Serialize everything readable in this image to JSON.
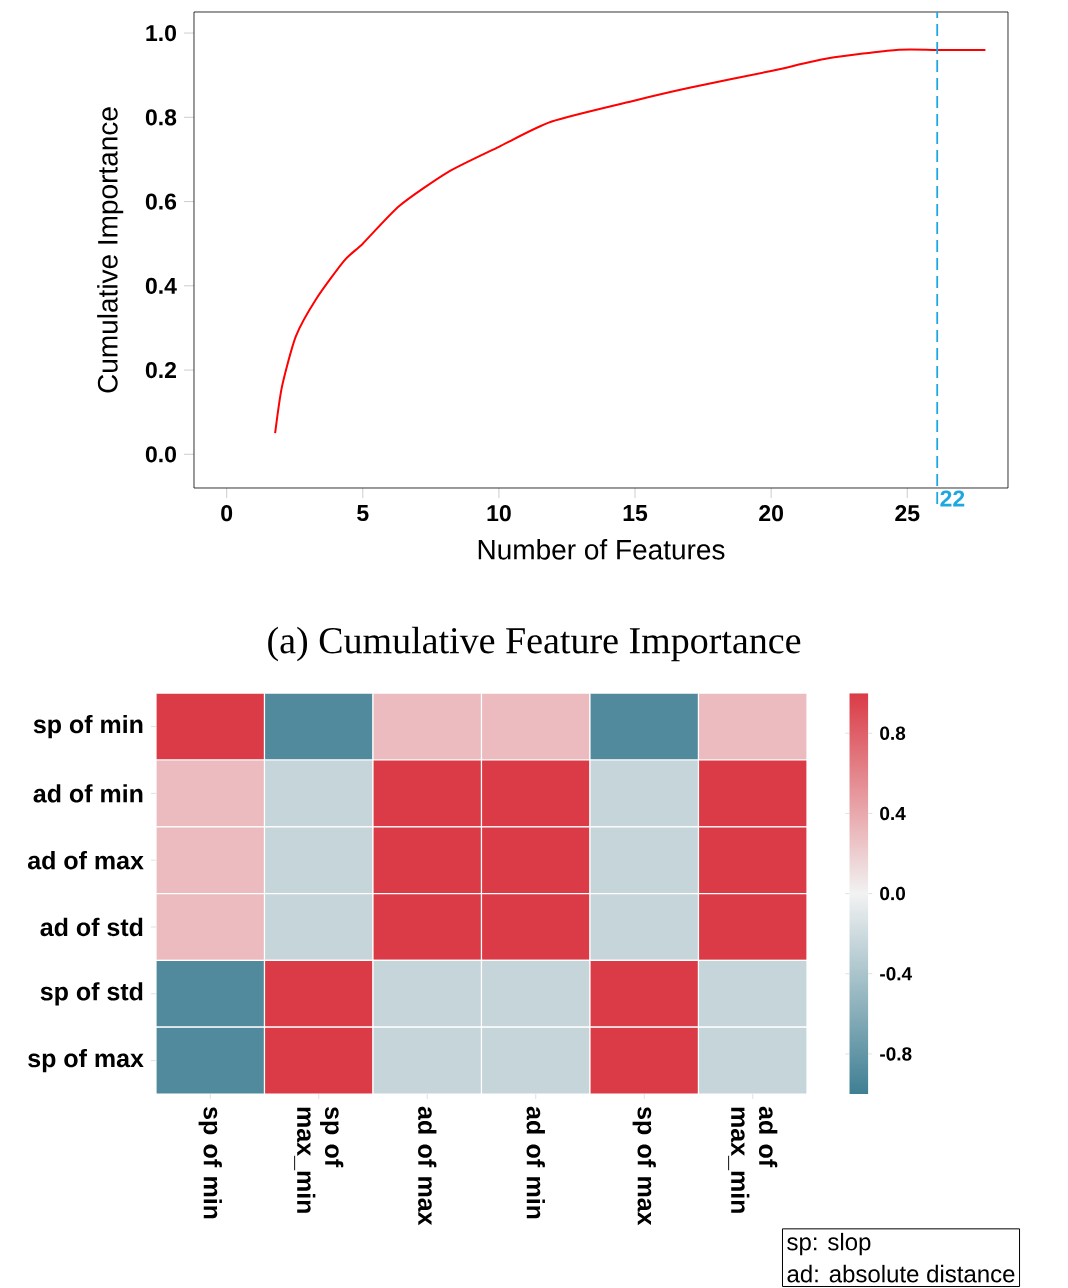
{
  "chart_data": [
    {
      "type": "line",
      "xlabel": "Number of Features",
      "ylabel": "Cumulative Importance",
      "x": [
        1.78,
        2.03,
        2.54,
        3.3,
        4.32,
        5.0,
        6.35,
        8.13,
        10.0,
        11.94,
        15.0,
        17.0,
        20.0,
        22.1,
        24.6,
        26.1,
        27.87
      ],
      "values": [
        0.05,
        0.16,
        0.28,
        0.37,
        0.46,
        0.5,
        0.59,
        0.67,
        0.73,
        0.79,
        0.84,
        0.87,
        0.91,
        0.94,
        0.96,
        0.96,
        0.96
      ],
      "color": "#ff0000",
      "xlim": [
        -1.2,
        28.7
      ],
      "ylim": [
        -0.08,
        1.05
      ],
      "xticks": [
        0,
        5,
        10,
        15,
        20,
        25
      ],
      "yticks": [
        {
          "value": 0,
          "label": "0.0"
        },
        {
          "value": 0.2,
          "label": "0.2"
        },
        {
          "value": 0.4,
          "label": "0.4"
        },
        {
          "value": 0.6,
          "label": "0.6"
        },
        {
          "value": 0.8,
          "label": "0.8"
        },
        {
          "value": 1,
          "label": "1.0"
        }
      ],
      "ref_lines": [
        {
          "axis": "x",
          "value": 26.1,
          "color": "#1ea7e1",
          "line_style": "dashed"
        }
      ],
      "annotations": [
        "(a) Cumulative Feature Importance",
        {
          "text": "22",
          "x": 26.1,
          "y": -0.08
        }
      ]
    },
    {
      "type": "heatmap",
      "categories": [
        "sp of min",
        "sp of max_min",
        "ad of max",
        "ad of min",
        "sp of max",
        "ad of max_min"
      ],
      "y_categories": [
        "sp of min",
        "ad of min",
        "ad of max",
        "ad of std",
        "sp of std",
        "sp of max"
      ],
      "cells": [
        [
          1,
          -0.9,
          0.3,
          0.3,
          -0.9,
          0.3
        ],
        [
          0.3,
          -0.25,
          1,
          1,
          -0.25,
          1
        ],
        [
          0.3,
          -0.25,
          1,
          1,
          -0.25,
          1
        ],
        [
          0.3,
          -0.25,
          1,
          1,
          -0.25,
          1
        ],
        [
          -0.9,
          1,
          -0.25,
          -0.25,
          1,
          -0.25
        ],
        [
          -0.9,
          1,
          -0.25,
          -0.25,
          1,
          -0.25
        ]
      ],
      "clim": [
        -1,
        1
      ],
      "cticks": [
        -0.8,
        -0.4,
        {
          "value": 0,
          "label": "0.0"
        },
        0.4,
        0.8
      ],
      "annotations": [
        "sp: slop",
        "ad: absolute distance"
      ]
    }
  ]
}
